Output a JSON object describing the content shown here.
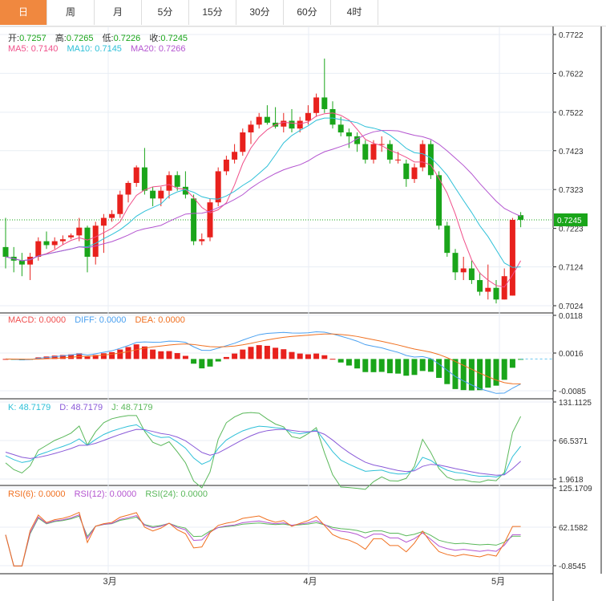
{
  "tabs": [
    "日",
    "周",
    "月",
    "5分",
    "15分",
    "30分",
    "60分",
    "4时"
  ],
  "active_tab": 0,
  "ohlc_legend": {
    "open_label": "开:",
    "open": "0.7257",
    "high_label": "高:",
    "high": "0.7265",
    "low_label": "低:",
    "low": "0.7226",
    "close_label": "收:",
    "close": "0.7245"
  },
  "ma_legend": {
    "ma5": "MA5: 0.7140",
    "ma10": "MA10: 0.7145",
    "ma20": "MA20: 0.7266"
  },
  "macd_legend": {
    "macd": "MACD: 0.0000",
    "diff": "DIFF: 0.0000",
    "dea": "DEA: 0.0000"
  },
  "kdj_legend": {
    "k": "K: 48.7179",
    "d": "D: 48.7179",
    "j": "J: 48.7179"
  },
  "rsi_legend": {
    "rsi6": "RSI(6): 0.0000",
    "rsi12": "RSI(12): 0.0000",
    "rsi24": "RSI(24): 0.0000"
  },
  "colors": {
    "up": "#e8211d",
    "down": "#1aa51a",
    "ma5": "#f0508a",
    "ma10": "#2ec0d8",
    "ma20": "#b455d0",
    "accent": "#f0883f"
  },
  "chart_data": {
    "type": "candlestick",
    "price_ticks": [
      "0.7722",
      "0.7622",
      "0.7522",
      "0.7423",
      "0.7323",
      "0.7223",
      "0.7124",
      "0.7024"
    ],
    "price_range": [
      0.7024,
      0.7722
    ],
    "current_price": "0.7245",
    "macd_ticks": [
      "0.0118",
      "0.0016",
      "-0.0085"
    ],
    "kdj_ticks": [
      "131.1125",
      "66.5371",
      "1.9618"
    ],
    "rsi_ticks": [
      "125.1709",
      "62.1582",
      "-0.8545"
    ],
    "x_labels": [
      {
        "label": "3月",
        "index": 12.5
      },
      {
        "label": "4月",
        "index": 37
      },
      {
        "label": "5月",
        "index": 60
      }
    ],
    "ohlc": [
      [
        0.7175,
        0.725,
        0.712,
        0.715
      ],
      [
        0.715,
        0.7175,
        0.711,
        0.714
      ],
      [
        0.714,
        0.716,
        0.71,
        0.713
      ],
      [
        0.713,
        0.716,
        0.709,
        0.715
      ],
      [
        0.715,
        0.72,
        0.714,
        0.719
      ],
      [
        0.719,
        0.7215,
        0.717,
        0.718
      ],
      [
        0.718,
        0.72,
        0.717,
        0.719
      ],
      [
        0.719,
        0.7205,
        0.718,
        0.7195
      ],
      [
        0.72,
        0.721,
        0.7195,
        0.7205
      ],
      [
        0.7205,
        0.725,
        0.719,
        0.7225
      ],
      [
        0.7225,
        0.723,
        0.711,
        0.715
      ],
      [
        0.715,
        0.724,
        0.713,
        0.723
      ],
      [
        0.723,
        0.726,
        0.716,
        0.725
      ],
      [
        0.725,
        0.727,
        0.724,
        0.726
      ],
      [
        0.726,
        0.732,
        0.725,
        0.731
      ],
      [
        0.731,
        0.7345,
        0.729,
        0.734
      ],
      [
        0.734,
        0.7385,
        0.733,
        0.738
      ],
      [
        0.738,
        0.743,
        0.731,
        0.732
      ],
      [
        0.732,
        0.733,
        0.728,
        0.73
      ],
      [
        0.73,
        0.733,
        0.728,
        0.732
      ],
      [
        0.732,
        0.737,
        0.73,
        0.736
      ],
      [
        0.736,
        0.737,
        0.732,
        0.733
      ],
      [
        0.733,
        0.737,
        0.73,
        0.731
      ],
      [
        0.73,
        0.731,
        0.718,
        0.719
      ],
      [
        0.719,
        0.721,
        0.718,
        0.7195
      ],
      [
        0.72,
        0.73,
        0.719,
        0.729
      ],
      [
        0.729,
        0.738,
        0.728,
        0.737
      ],
      [
        0.737,
        0.741,
        0.736,
        0.74
      ],
      [
        0.74,
        0.744,
        0.739,
        0.742
      ],
      [
        0.742,
        0.748,
        0.741,
        0.747
      ],
      [
        0.747,
        0.75,
        0.744,
        0.749
      ],
      [
        0.749,
        0.752,
        0.748,
        0.751
      ],
      [
        0.751,
        0.754,
        0.749,
        0.7495
      ],
      [
        0.7495,
        0.7535,
        0.748,
        0.7485
      ],
      [
        0.7485,
        0.752,
        0.747,
        0.75
      ],
      [
        0.75,
        0.753,
        0.747,
        0.748
      ],
      [
        0.748,
        0.751,
        0.747,
        0.75
      ],
      [
        0.75,
        0.754,
        0.749,
        0.752
      ],
      [
        0.752,
        0.757,
        0.751,
        0.756
      ],
      [
        0.756,
        0.766,
        0.752,
        0.753
      ],
      [
        0.753,
        0.755,
        0.748,
        0.749
      ],
      [
        0.749,
        0.751,
        0.746,
        0.747
      ],
      [
        0.747,
        0.748,
        0.743,
        0.746
      ],
      [
        0.746,
        0.747,
        0.742,
        0.744
      ],
      [
        0.744,
        0.745,
        0.739,
        0.74
      ],
      [
        0.74,
        0.745,
        0.739,
        0.744
      ],
      [
        0.744,
        0.746,
        0.742,
        0.744
      ],
      [
        0.744,
        0.745,
        0.739,
        0.74
      ],
      [
        0.74,
        0.742,
        0.739,
        0.74
      ],
      [
        0.739,
        0.74,
        0.733,
        0.735
      ],
      [
        0.735,
        0.739,
        0.734,
        0.738
      ],
      [
        0.738,
        0.745,
        0.737,
        0.744
      ],
      [
        0.744,
        0.745,
        0.735,
        0.736
      ],
      [
        0.736,
        0.737,
        0.722,
        0.723
      ],
      [
        0.723,
        0.724,
        0.715,
        0.716
      ],
      [
        0.716,
        0.717,
        0.709,
        0.711
      ],
      [
        0.711,
        0.715,
        0.709,
        0.712
      ],
      [
        0.712,
        0.714,
        0.708,
        0.709
      ],
      [
        0.709,
        0.711,
        0.705,
        0.706
      ],
      [
        0.706,
        0.713,
        0.704,
        0.707
      ],
      [
        0.707,
        0.709,
        0.703,
        0.704
      ],
      [
        0.704,
        0.712,
        0.704,
        0.71
      ],
      [
        0.705,
        0.725,
        0.705,
        0.7245
      ],
      [
        0.7257,
        0.7265,
        0.7226,
        0.7245
      ]
    ]
  }
}
